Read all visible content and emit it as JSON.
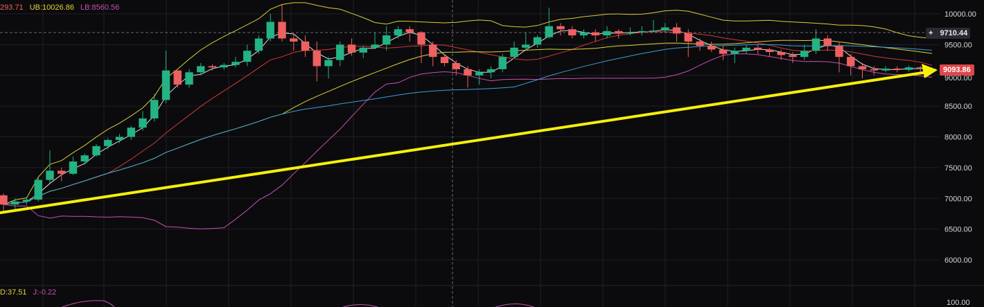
{
  "legend": {
    "mid_value": "293.71",
    "ub_label": "UB:10026.86",
    "lb_label": "LB:8560.56"
  },
  "sub_legend": {
    "d_label": "D:37.51",
    "j_label": "J:-0.22"
  },
  "crosshair_price": "9710.44",
  "crosshair_plus": "+",
  "last_price": "9093.86",
  "colors": {
    "up": "#23b384",
    "down": "#ef6160",
    "upper_band": "#d9cd3a",
    "lower_band": "#c94fb3",
    "ma_white": "#dcdcdc",
    "ma_red": "#d0393c",
    "ma_yellow": "#dfd23a",
    "ma_blue": "#3f9ed4",
    "arrow": "#f5f00a",
    "last_price_bg": "#e0464b",
    "grid": "#1f1f27"
  },
  "chart_data": {
    "type": "candlestick",
    "y_ticks": [
      10000,
      9500,
      9000,
      8500,
      8000,
      7500,
      7000,
      6500,
      6000
    ],
    "y_tick_labels": [
      "10000.00",
      "9500.00",
      "9000.00",
      "8500.00",
      "8000.00",
      "7500.00",
      "7000.00",
      "6500.00",
      "6000.00"
    ],
    "ylim": [
      5680,
      10240
    ],
    "sub_tick_label": "100.00",
    "candles": [
      [
        7050,
        6900,
        7080,
        6800
      ],
      [
        6900,
        6950,
        7000,
        6820
      ],
      [
        6950,
        6980,
        7010,
        6900
      ],
      [
        6980,
        7300,
        7360,
        6950
      ],
      [
        7300,
        7450,
        7780,
        7250
      ],
      [
        7450,
        7400,
        7500,
        7280
      ],
      [
        7400,
        7600,
        7680,
        7380
      ],
      [
        7600,
        7700,
        7730,
        7550
      ],
      [
        7700,
        7850,
        7880,
        7680
      ],
      [
        7850,
        7950,
        7980,
        7800
      ],
      [
        7950,
        8000,
        8050,
        7900
      ],
      [
        8000,
        8150,
        8180,
        7950
      ],
      [
        8150,
        8300,
        8420,
        8100
      ],
      [
        8300,
        8600,
        8700,
        8250
      ],
      [
        8600,
        9080,
        9400,
        8550
      ],
      [
        9080,
        8850,
        9080,
        8800
      ],
      [
        8850,
        9050,
        9100,
        8800
      ],
      [
        9050,
        9150,
        9200,
        9000
      ],
      [
        9150,
        9130,
        9180,
        9080
      ],
      [
        9130,
        9170,
        9200,
        9090
      ],
      [
        9170,
        9220,
        9300,
        9130
      ],
      [
        9220,
        9400,
        9500,
        9150
      ],
      [
        9400,
        9600,
        9650,
        9350
      ],
      [
        9600,
        9870,
        10000,
        9550
      ],
      [
        9870,
        9600,
        10150,
        9550
      ],
      [
        9600,
        9550,
        9680,
        9400
      ],
      [
        9550,
        9400,
        9650,
        9300
      ],
      [
        9400,
        9150,
        9550,
        8900
      ],
      [
        9150,
        9250,
        9300,
        8950
      ],
      [
        9250,
        9500,
        9550,
        9150
      ],
      [
        9500,
        9370,
        9600,
        9320
      ],
      [
        9370,
        9450,
        9480,
        9280
      ],
      [
        9450,
        9500,
        9700,
        9430
      ],
      [
        9500,
        9650,
        9800,
        9400
      ],
      [
        9650,
        9750,
        9800,
        9600
      ],
      [
        9750,
        9700,
        9800,
        9550
      ],
      [
        9700,
        9500,
        9720,
        9200
      ],
      [
        9500,
        9300,
        9550,
        9150
      ],
      [
        9300,
        9200,
        9350,
        9150
      ],
      [
        9200,
        9100,
        9250,
        9000
      ],
      [
        9100,
        9000,
        9150,
        8800
      ],
      [
        9000,
        9050,
        9100,
        8850
      ],
      [
        9050,
        9100,
        9150,
        8950
      ],
      [
        9100,
        9300,
        9350,
        9050
      ],
      [
        9300,
        9450,
        9550,
        9280
      ],
      [
        9450,
        9500,
        9700,
        9400
      ],
      [
        9500,
        9620,
        9650,
        9450
      ],
      [
        9620,
        9800,
        10100,
        9600
      ],
      [
        9800,
        9750,
        9850,
        9650
      ],
      [
        9750,
        9650,
        9800,
        9600
      ],
      [
        9650,
        9700,
        9750,
        9600
      ],
      [
        9700,
        9650,
        9750,
        9550
      ],
      [
        9650,
        9720,
        9800,
        9600
      ],
      [
        9720,
        9680,
        9750,
        9600
      ],
      [
        9680,
        9700,
        9780,
        9650
      ],
      [
        9700,
        9720,
        9800,
        9650
      ],
      [
        9720,
        9730,
        9900,
        9700
      ],
      [
        9730,
        9780,
        9850,
        9700
      ],
      [
        9780,
        9680,
        9850,
        9550
      ],
      [
        9680,
        9550,
        9750,
        9300
      ],
      [
        9550,
        9480,
        9600,
        9400
      ],
      [
        9480,
        9420,
        9550,
        9380
      ],
      [
        9420,
        9350,
        9480,
        9250
      ],
      [
        9350,
        9400,
        9450,
        9200
      ],
      [
        9400,
        9450,
        9500,
        9350
      ],
      [
        9450,
        9420,
        9500,
        9350
      ],
      [
        9420,
        9380,
        9450,
        9300
      ],
      [
        9380,
        9330,
        9420,
        9250
      ],
      [
        9330,
        9300,
        9380,
        9200
      ],
      [
        9300,
        9400,
        9500,
        9250
      ],
      [
        9400,
        9600,
        9750,
        9350
      ],
      [
        9600,
        9480,
        9650,
        9400
      ],
      [
        9480,
        9300,
        9550,
        9050
      ],
      [
        9300,
        9150,
        9350,
        9000
      ],
      [
        9150,
        9100,
        9200,
        8950
      ],
      [
        9100,
        9080,
        9150,
        9000
      ],
      [
        9080,
        9110,
        9150,
        9050
      ],
      [
        9110,
        9090,
        9150,
        9050
      ],
      [
        9090,
        9130,
        9160,
        9060
      ],
      [
        9130,
        9110,
        9150,
        9060
      ],
      [
        9110,
        9094,
        9130,
        9060
      ]
    ]
  }
}
